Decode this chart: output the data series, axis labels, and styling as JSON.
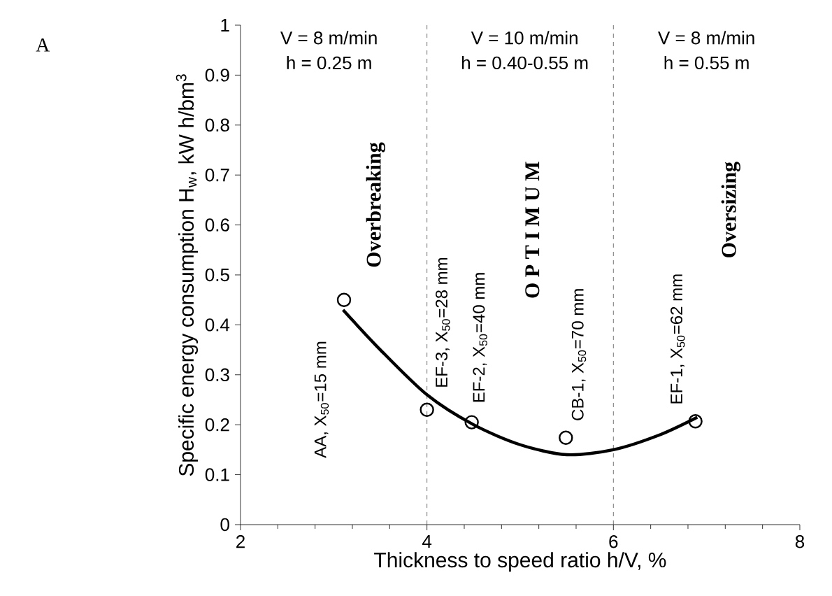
{
  "chart_data": {
    "type": "scatter",
    "xlabel": "Thickness to speed ratio h/V, %",
    "ylabel": "Specific energy consumption H$_{w}$, kW h/bm$^{3}$",
    "xlim": [
      2,
      8
    ],
    "ylim": [
      0,
      1
    ],
    "xticks": [
      2,
      4,
      6,
      8
    ],
    "yticks": [
      0,
      0.1,
      0.2,
      0.3,
      0.4,
      0.5,
      0.6,
      0.7,
      0.8,
      0.9,
      1
    ],
    "marker": "circle",
    "grid": false,
    "series": [
      {
        "color": "#000000",
        "x": [
          3.11,
          4.0,
          4.48,
          5.49,
          6.88
        ],
        "values": [
          0.45,
          0.23,
          0.205,
          0.174,
          0.207
        ]
      },
      {
        "type": "line",
        "color": "#000000",
        "marker": "none",
        "x": [
          3.1,
          3.5,
          4.0,
          4.5,
          5.0,
          5.5,
          6.0,
          6.5,
          6.9
        ],
        "values": [
          0.43,
          0.35,
          0.26,
          0.2,
          0.16,
          0.14,
          0.15,
          0.18,
          0.215
        ]
      }
    ],
    "ref_lines": [
      {
        "axis": "x",
        "value": 4,
        "line_style": "dashed",
        "color": "#555555"
      },
      {
        "axis": "x",
        "value": 6,
        "line_style": "dashed",
        "color": "#555555"
      }
    ],
    "annotations": [
      "A",
      "V = 8 m/min",
      "h = 0.25 m",
      "V = 10 m/min",
      "h = 0.40-0.55 m",
      "V = 8 m/min",
      "h = 0.55 m",
      "Overbreaking",
      "O P T I M U M",
      "Oversizing",
      {
        "text": "AA, X$_{50}$=15 mm",
        "x": 3.11,
        "y": 0.45
      },
      {
        "text": "EF-3, X$_{50}$=28 mm",
        "x": 4.0,
        "y": 0.23
      },
      {
        "text": "EF-2, X$_{50}$=40 mm",
        "x": 4.48,
        "y": 0.205
      },
      {
        "text": "CB-1, X$_{50}$=70 mm",
        "x": 5.49,
        "y": 0.174
      },
      {
        "text": "EF-1, X$_{50}$=62 mm",
        "x": 6.88,
        "y": 0.207
      }
    ]
  }
}
